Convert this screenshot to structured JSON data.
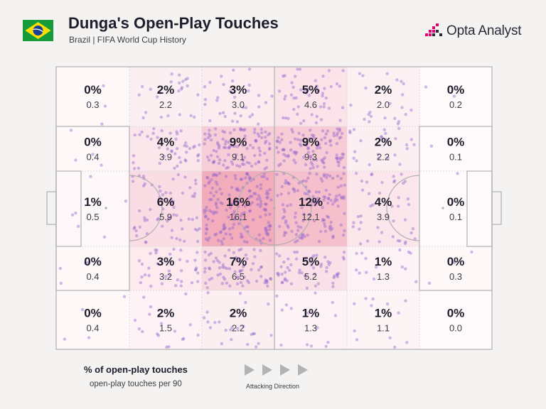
{
  "header": {
    "title": "Dunga's Open-Play Touches",
    "subtitle": "Brazil | FIFA World Cup History"
  },
  "brand": {
    "name": "Opta Analyst",
    "accent": "#e5006f"
  },
  "flag": {
    "icon": "brazil-flag-icon"
  },
  "colors": {
    "background": "#f4f3f2",
    "pitch": "#ffffff",
    "lines": "#b0b0b0",
    "heat": "#e2476b",
    "dots": "#8c5fce",
    "text": "#1d1d2b"
  },
  "chart_data": {
    "type": "heatmap",
    "title": "Dunga's Open-Play Touches",
    "subtitle": "Brazil | FIFA World Cup History",
    "zones": [
      {
        "row": 1,
        "cells": [
          {
            "pct": "0%",
            "per90": "0.3"
          },
          {
            "pct": "2%",
            "per90": "2.2"
          },
          {
            "pct": "3%",
            "per90": "3.0"
          },
          {
            "pct": "5%",
            "per90": "4.6"
          },
          {
            "pct": "2%",
            "per90": "2.0"
          },
          {
            "pct": "0%",
            "per90": "0.2"
          }
        ]
      },
      {
        "row": 2,
        "cells": [
          {
            "pct": "0%",
            "per90": "0.4"
          },
          {
            "pct": "4%",
            "per90": "3.9"
          },
          {
            "pct": "9%",
            "per90": "9.1"
          },
          {
            "pct": "9%",
            "per90": "9.3"
          },
          {
            "pct": "2%",
            "per90": "2.2"
          },
          {
            "pct": "0%",
            "per90": "0.1"
          }
        ]
      },
      {
        "row": 3,
        "cells": [
          {
            "pct": "1%",
            "per90": "0.5"
          },
          {
            "pct": "6%",
            "per90": "5.9"
          },
          {
            "pct": "16%",
            "per90": "16.1"
          },
          {
            "pct": "12%",
            "per90": "12.1"
          },
          {
            "pct": "4%",
            "per90": "3.9"
          },
          {
            "pct": "0%",
            "per90": "0.1"
          }
        ]
      },
      {
        "row": 4,
        "cells": [
          {
            "pct": "0%",
            "per90": "0.4"
          },
          {
            "pct": "3%",
            "per90": "3.2"
          },
          {
            "pct": "7%",
            "per90": "6.5"
          },
          {
            "pct": "5%",
            "per90": "5.2"
          },
          {
            "pct": "1%",
            "per90": "1.3"
          },
          {
            "pct": "0%",
            "per90": "0.3"
          }
        ]
      },
      {
        "row": 5,
        "cells": [
          {
            "pct": "0%",
            "per90": "0.4"
          },
          {
            "pct": "2%",
            "per90": "1.5"
          },
          {
            "pct": "2%",
            "per90": "2.2"
          },
          {
            "pct": "1%",
            "per90": "1.3"
          },
          {
            "pct": "1%",
            "per90": "1.1"
          },
          {
            "pct": "0%",
            "per90": "0.0"
          }
        ]
      }
    ],
    "grid": true,
    "attacking_direction": "left-to-right"
  },
  "legend": {
    "primary": "% of open-play touches",
    "secondary": "open-play touches per 90",
    "direction_label": "Attacking Direction"
  }
}
